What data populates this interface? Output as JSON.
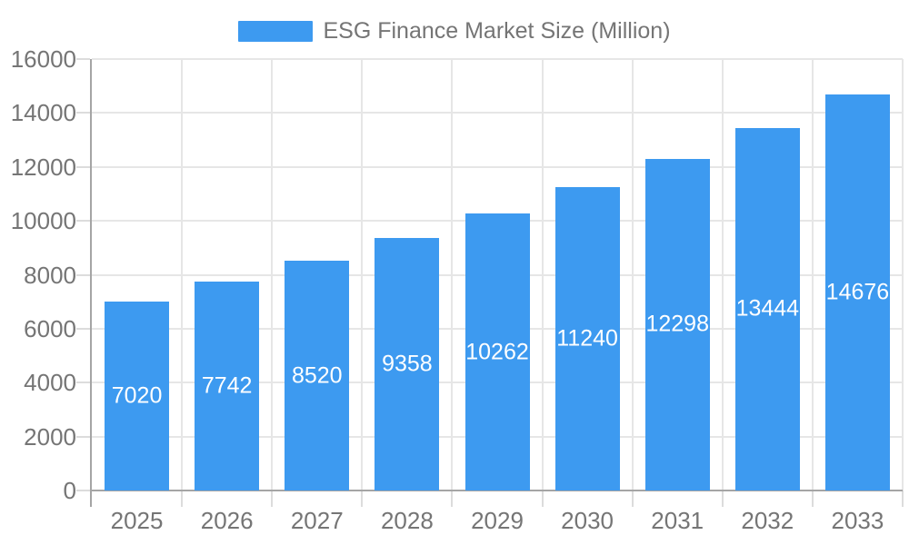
{
  "legend": {
    "label": "ESG Finance Market Size (Million)"
  },
  "chart_data": {
    "type": "bar",
    "title": "ESG Finance Market Size (Million)",
    "categories": [
      "2025",
      "2026",
      "2027",
      "2028",
      "2029",
      "2030",
      "2031",
      "2032",
      "2033"
    ],
    "values": [
      7020,
      7742,
      8520,
      9358,
      10262,
      11240,
      12298,
      13444,
      14676
    ],
    "series_name": "ESG Finance Market Size (Million)",
    "xlabel": "",
    "ylabel": "",
    "ylim": [
      0,
      16000
    ],
    "yticks": [
      0,
      2000,
      4000,
      6000,
      8000,
      10000,
      12000,
      14000,
      16000
    ],
    "grid": true,
    "legend_position": "top",
    "bar_labels_inside": true
  },
  "colors": {
    "bar": "#3D9AF0",
    "bar_label": "#FFFFFF",
    "axis_line": "#A5A5A5",
    "tick": "#DCDCDC",
    "grid": "#E6E6E6",
    "text": "#757575",
    "background": "#FFFFFF"
  }
}
